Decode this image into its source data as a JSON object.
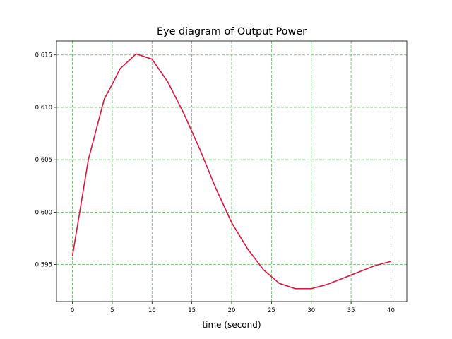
{
  "chart_data": {
    "type": "line",
    "title": "Eye diagram of Output Power",
    "x_label": "time (second)",
    "x": [
      0,
      2,
      4,
      5,
      6,
      8,
      10,
      12,
      14,
      16,
      18,
      20,
      22,
      24,
      26,
      28,
      30,
      32,
      34,
      36,
      38,
      40
    ],
    "series": [
      {
        "color": "#dc143c",
        "values": [
          0.5958,
          0.605,
          0.6108,
          0.6122,
          0.6137,
          0.6151,
          0.6146,
          0.6124,
          0.6094,
          0.606,
          0.6023,
          0.599,
          0.5965,
          0.5945,
          0.5932,
          0.5927,
          0.5927,
          0.5931,
          0.5937,
          0.5943,
          0.5949,
          0.5953
        ]
      }
    ],
    "xlim": [
      -2,
      42
    ],
    "ylim": [
      0.59147,
      0.61633
    ],
    "xticks": [
      0,
      5,
      10,
      15,
      20,
      25,
      30,
      35,
      40
    ],
    "yticks": [
      0.595,
      {
        "value": 0.6,
        "label": "0.600"
      },
      0.605,
      {
        "value": 0.61,
        "label": "0.610"
      },
      0.615
    ],
    "grid": true,
    "grid_color": "#5cb85c"
  }
}
